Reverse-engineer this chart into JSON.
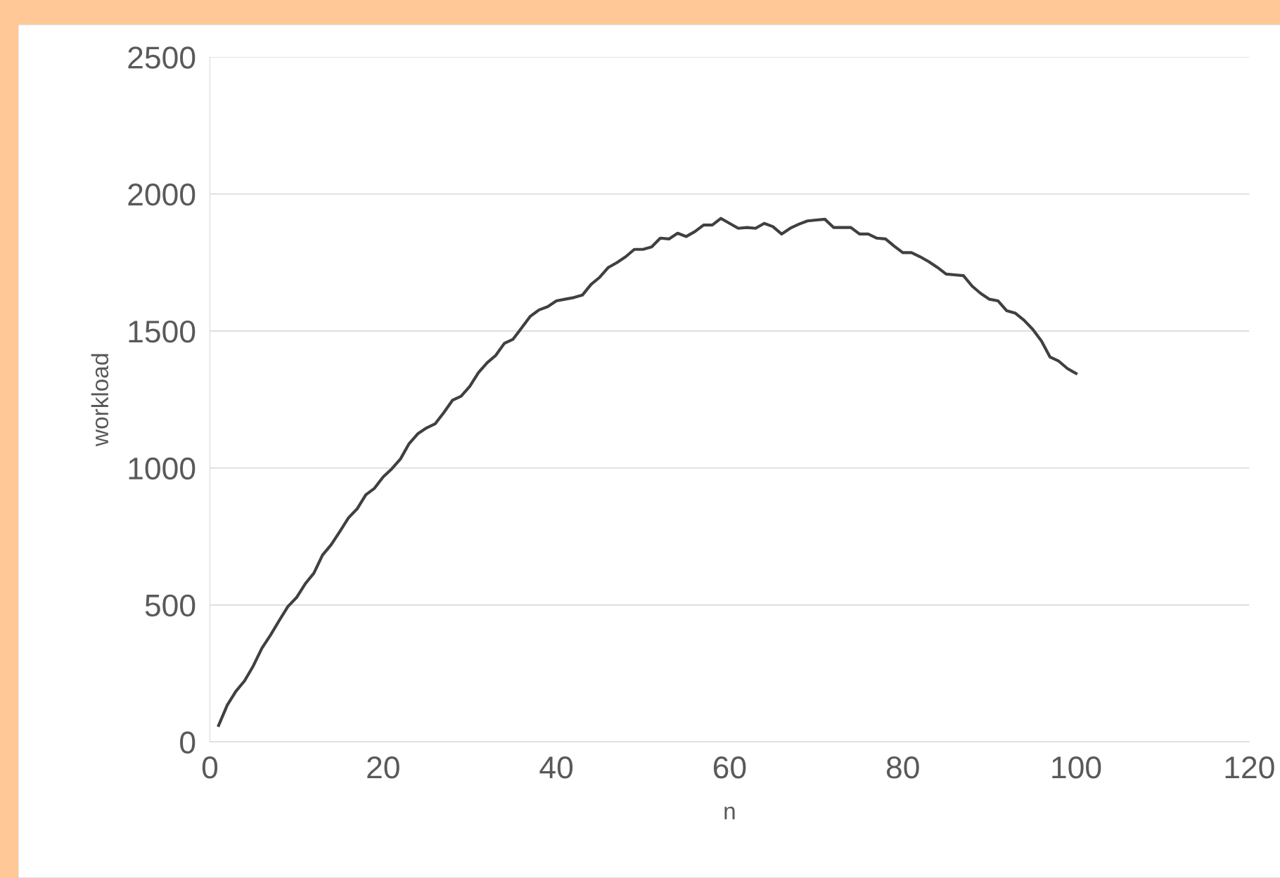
{
  "chart_data": {
    "type": "line",
    "xlabel": "n",
    "ylabel": "workload",
    "x": [
      1,
      2,
      3,
      4,
      5,
      6,
      7,
      8,
      9,
      10,
      11,
      12,
      13,
      14,
      15,
      16,
      17,
      18,
      19,
      20,
      21,
      22,
      23,
      24,
      25,
      26,
      27,
      28,
      29,
      30,
      31,
      32,
      33,
      34,
      35,
      36,
      37,
      38,
      39,
      40,
      41,
      42,
      43,
      44,
      45,
      46,
      47,
      48,
      49,
      50,
      51,
      52,
      53,
      54,
      55,
      56,
      57,
      58,
      59,
      60,
      61,
      62,
      63,
      64,
      65,
      66,
      67,
      68,
      69,
      70,
      71,
      72,
      73,
      74,
      75,
      76,
      77,
      78,
      79,
      80,
      81,
      82,
      83,
      84,
      85,
      86,
      87,
      88,
      89,
      90,
      91,
      92,
      93,
      94,
      95,
      96,
      97,
      98,
      99,
      100
    ],
    "series": [
      {
        "color": "#404040",
        "values": [
          60,
          134,
          185,
          223,
          277,
          342,
          390,
          443,
          494,
          527,
          577,
          616,
          682,
          720,
          768,
          818,
          851,
          902,
          926,
          967,
          997,
          1033,
          1089,
          1125,
          1146,
          1161,
          1202,
          1247,
          1262,
          1298,
          1348,
          1384,
          1411,
          1455,
          1470,
          1512,
          1554,
          1577,
          1589,
          1610,
          1616,
          1622,
          1631,
          1670,
          1696,
          1732,
          1750,
          1771,
          1798,
          1798,
          1807,
          1839,
          1836,
          1857,
          1845,
          1863,
          1887,
          1887,
          1911,
          1893,
          1875,
          1878,
          1875,
          1893,
          1881,
          1854,
          1875,
          1890,
          1902,
          1905,
          1908,
          1878,
          1878,
          1878,
          1854,
          1854,
          1839,
          1836,
          1810,
          1786,
          1786,
          1771,
          1753,
          1732,
          1708,
          1705,
          1702,
          1664,
          1637,
          1616,
          1610,
          1574,
          1565,
          1539,
          1506,
          1464,
          1405,
          1390,
          1363,
          1345
        ]
      }
    ],
    "xlim": [
      0,
      120
    ],
    "xticks": [
      0,
      20,
      40,
      60,
      80,
      100,
      120
    ],
    "ylim": [
      0,
      2500
    ],
    "yticks": [
      0,
      500,
      1000,
      1500,
      2000,
      2500
    ],
    "grid": "y",
    "marker": "none",
    "line_style": "solid",
    "legend": false
  }
}
